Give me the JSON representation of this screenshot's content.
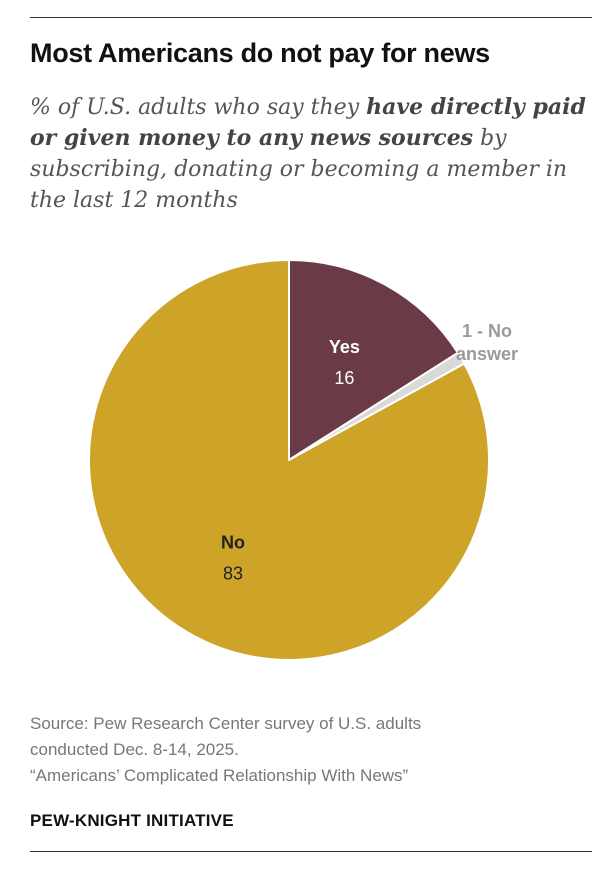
{
  "header": {
    "title": "Most Americans do not pay for news",
    "subtitle_pre": "% of U.S. adults who say they ",
    "subtitle_bold": "have directly paid or given money to any news sources",
    "subtitle_post": " by subscribing, donating or becoming a member in the last 12 months"
  },
  "chart_data": {
    "type": "pie",
    "title": "Most Americans do not pay for news",
    "start_angle_deg": 0,
    "direction": "clockwise",
    "slices": [
      {
        "label": "Yes",
        "value": 16,
        "value_label": "16",
        "color": "#6b3a47",
        "label_color": "#ffffff",
        "value_color": "#ffffff",
        "outside": false
      },
      {
        "label": "No answer",
        "value": 1,
        "value_label": "1 - No",
        "label2": "answer",
        "color": "#d9d9d9",
        "label_color": "#9a9a9a",
        "value_color": "#9a9a9a",
        "outside": true
      },
      {
        "label": "No",
        "value": 83,
        "value_label": "83",
        "color": "#cda328",
        "label_color": "#222222",
        "value_color": "#222222",
        "outside": false
      }
    ]
  },
  "footer": {
    "source_line1": "Source: Pew Research Center survey of U.S. adults",
    "source_line2": "conducted Dec. 8-14, 2025.",
    "report": "“Americans’ Complicated Relationship With News”",
    "org": "PEW-KNIGHT INITIATIVE"
  }
}
